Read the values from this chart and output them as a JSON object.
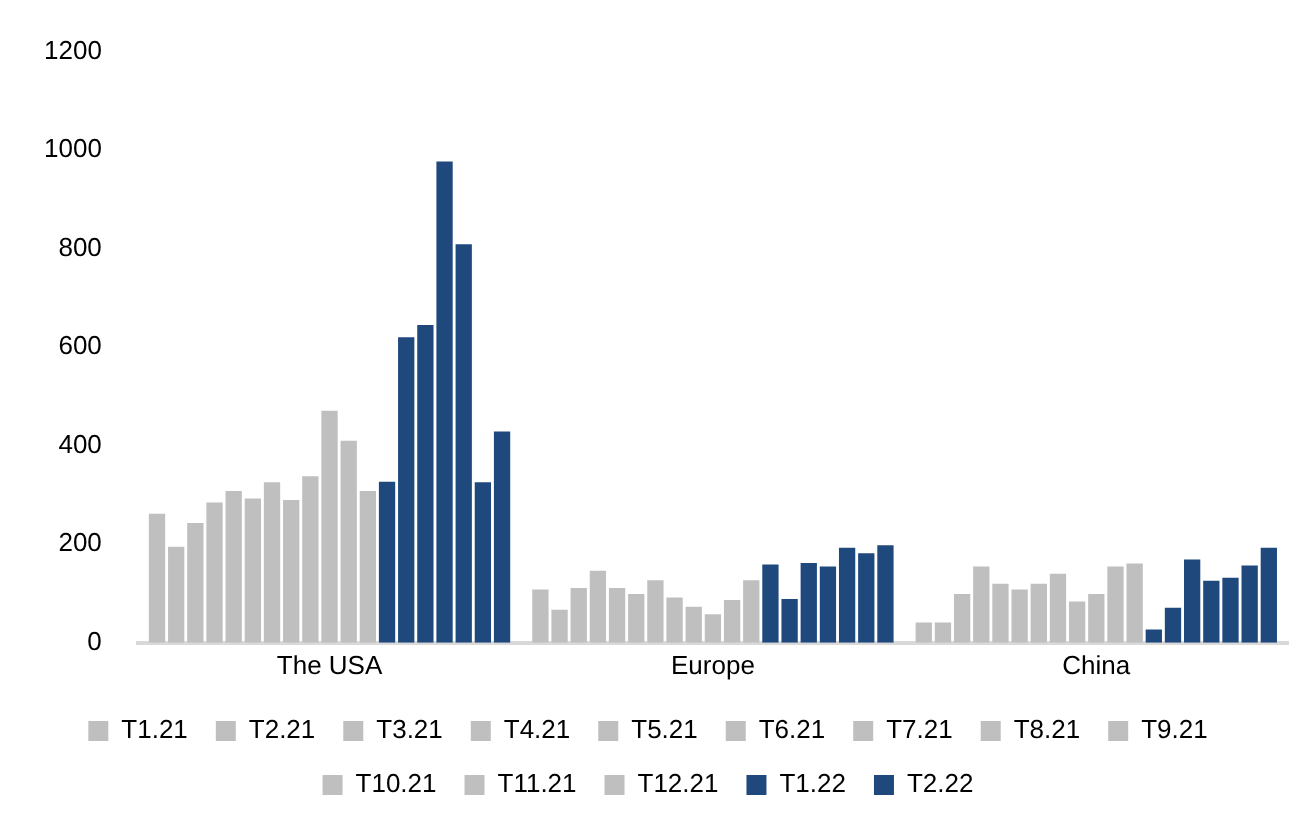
{
  "chart_data": {
    "type": "bar",
    "categories": [
      "The USA",
      "Europe",
      "China"
    ],
    "ylim": [
      0,
      1200
    ],
    "yticks": [
      0,
      200,
      400,
      600,
      800,
      1000,
      1200
    ],
    "grid": false,
    "legend": "bottom",
    "series": [
      {
        "name": "T1.21",
        "color": "#bfbfbf",
        "values": [
          262,
          108,
          41
        ]
      },
      {
        "name": "T2.21",
        "color": "#bfbfbf",
        "values": [
          195,
          67,
          41
        ]
      },
      {
        "name": "T3.21",
        "color": "#bfbfbf",
        "values": [
          243,
          111,
          99
        ]
      },
      {
        "name": "T4.21",
        "color": "#bfbfbf",
        "values": [
          285,
          146,
          155
        ]
      },
      {
        "name": "T5.21",
        "color": "#bfbfbf",
        "values": [
          308,
          111,
          120
        ]
      },
      {
        "name": "T6.21",
        "color": "#bfbfbf",
        "values": [
          293,
          99,
          108
        ]
      },
      {
        "name": "T7.21",
        "color": "#bfbfbf",
        "values": [
          326,
          127,
          120
        ]
      },
      {
        "name": "T8.21",
        "color": "#bfbfbf",
        "values": [
          290,
          92,
          140
        ]
      },
      {
        "name": "T9.21",
        "color": "#bfbfbf",
        "values": [
          338,
          73,
          84
        ]
      },
      {
        "name": "T10.21",
        "color": "#bfbfbf",
        "values": [
          471,
          58,
          99
        ]
      },
      {
        "name": "T11.21",
        "color": "#bfbfbf",
        "values": [
          410,
          87,
          155
        ]
      },
      {
        "name": "T12.21",
        "color": "#bfbfbf",
        "values": [
          308,
          127,
          161
        ]
      },
      {
        "name": "T1.22",
        "color": "#1f497d",
        "values": [
          327,
          159,
          27
        ]
      },
      {
        "name": "T2.22",
        "color": "#1f497d",
        "values": [
          620,
          89,
          71
        ]
      },
      {
        "color": "#1f497d",
        "values": [
          645,
          162,
          169
        ]
      },
      {
        "color": "#1f497d",
        "values": [
          977,
          155,
          126
        ]
      },
      {
        "color": "#1f497d",
        "values": [
          809,
          193,
          132
        ]
      },
      {
        "color": "#1f497d",
        "values": [
          326,
          182,
          157
        ]
      },
      {
        "color": "#1f497d",
        "values": [
          429,
          198,
          193
        ]
      }
    ]
  }
}
